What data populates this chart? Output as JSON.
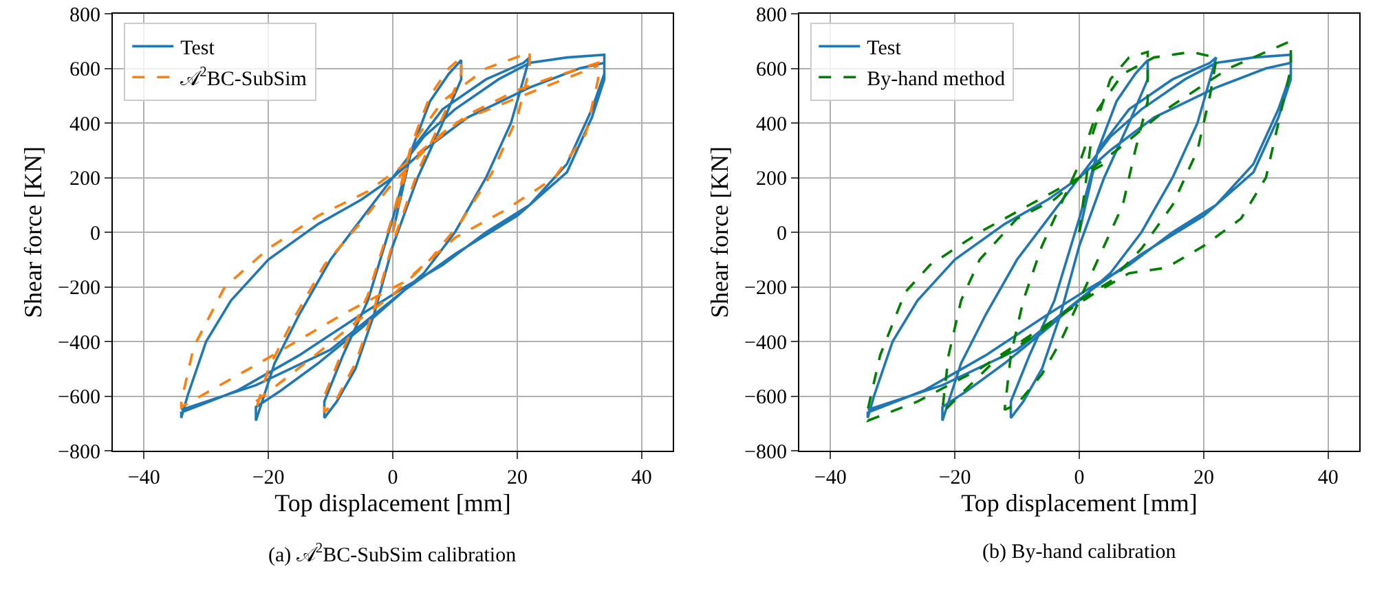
{
  "chart_data": [
    {
      "type": "line",
      "title": "(a) 𝒜$^{2}$BC-SubSim calibration",
      "xlabel": "Top displacement [mm]",
      "ylabel": "Shear force [KN]",
      "xlim": [
        -45,
        45
      ],
      "xticks": [
        -40,
        -20,
        0,
        20,
        40
      ],
      "ylim": [
        -800,
        800
      ],
      "yticks": [
        -800,
        -600,
        -400,
        -200,
        0,
        200,
        400,
        600,
        800
      ],
      "grid": true,
      "legend": "top left",
      "series": [
        {
          "name": "Test",
          "color": "#1f77b4",
          "line_style": "solid",
          "x": [
            0,
            3,
            6,
            9,
            11,
            11,
            8,
            4,
            0,
            -3,
            -6,
            -9,
            -11,
            -11,
            -8,
            -4,
            0,
            3,
            8,
            15,
            21,
            22,
            21,
            19,
            15,
            10,
            5,
            0,
            -5,
            -12,
            -18,
            -22,
            -22,
            -21,
            -19,
            -15,
            -10,
            -5,
            0,
            5,
            10,
            17,
            22,
            28,
            34,
            34,
            32,
            28,
            22,
            15,
            8,
            2,
            -5,
            -15,
            -25,
            -34,
            -34,
            -33,
            -30,
            -26,
            -20,
            -12,
            -5,
            0,
            5,
            12,
            22,
            30,
            34,
            34,
            32,
            28,
            20,
            10,
            2,
            -10,
            -22,
            -34
          ],
          "values": [
            0,
            300,
            480,
            580,
            630,
            560,
            400,
            200,
            -50,
            -300,
            -500,
            -620,
            -680,
            -620,
            -450,
            -250,
            50,
            300,
            450,
            560,
            620,
            640,
            560,
            400,
            200,
            0,
            -150,
            -250,
            -350,
            -480,
            -580,
            -640,
            -690,
            -620,
            -480,
            -300,
            -100,
            50,
            200,
            350,
            450,
            560,
            620,
            640,
            650,
            580,
            450,
            250,
            100,
            0,
            -120,
            -200,
            -300,
            -450,
            -580,
            -660,
            -680,
            -600,
            -400,
            -250,
            -100,
            30,
            120,
            200,
            300,
            420,
            530,
            600,
            620,
            560,
            420,
            220,
            60,
            -80,
            -210,
            -430,
            -560,
            -650
          ]
        },
        {
          "name": "𝒜$^{2}$BC-SubSim",
          "color": "#ff7f0e",
          "line_style": "dashed",
          "x": [
            0,
            3,
            6,
            9,
            11,
            11,
            8,
            4,
            0,
            -3,
            -6,
            -9,
            -11,
            -11,
            -8,
            -4,
            0,
            3,
            8,
            15,
            21,
            22,
            22,
            20,
            16,
            11,
            6,
            0,
            -6,
            -13,
            -22,
            -22,
            -20,
            -16,
            -11,
            -5,
            0,
            6,
            12,
            20,
            26,
            33,
            33,
            31,
            26,
            18,
            10,
            2,
            -8,
            -20,
            -34,
            -34,
            -32,
            -27,
            -20,
            -12,
            -4,
            2,
            10,
            22,
            33
          ],
          "values": [
            0,
            320,
            500,
            600,
            640,
            580,
            420,
            220,
            -40,
            -280,
            -480,
            -610,
            -660,
            -600,
            -430,
            -230,
            60,
            320,
            480,
            600,
            650,
            660,
            600,
            420,
            220,
            40,
            -100,
            -230,
            -330,
            -460,
            -620,
            -650,
            -500,
            -320,
            -120,
            40,
            180,
            320,
            430,
            520,
            570,
            620,
            560,
            360,
            200,
            80,
            -20,
            -180,
            -300,
            -460,
            -640,
            -620,
            -420,
            -200,
            -60,
            60,
            150,
            250,
            400,
            510,
            610
          ]
        }
      ]
    },
    {
      "type": "line",
      "title": "(b) By-hand calibration",
      "xlabel": "Top displacement [mm]",
      "ylabel": "Shear force [KN]",
      "xlim": [
        -45,
        45
      ],
      "xticks": [
        -40,
        -20,
        0,
        20,
        40
      ],
      "ylim": [
        -800,
        800
      ],
      "yticks": [
        -800,
        -600,
        -400,
        -200,
        0,
        200,
        400,
        600,
        800
      ],
      "grid": true,
      "legend": "top left",
      "series": [
        {
          "name": "Test",
          "color": "#1f77b4",
          "line_style": "solid",
          "x": [
            0,
            3,
            6,
            9,
            11,
            11,
            8,
            4,
            0,
            -3,
            -6,
            -9,
            -11,
            -11,
            -8,
            -4,
            0,
            3,
            8,
            15,
            21,
            22,
            21,
            19,
            15,
            10,
            5,
            0,
            -5,
            -12,
            -18,
            -22,
            -22,
            -21,
            -19,
            -15,
            -10,
            -5,
            0,
            5,
            10,
            17,
            22,
            28,
            34,
            34,
            32,
            28,
            22,
            15,
            8,
            2,
            -5,
            -15,
            -25,
            -34,
            -34,
            -33,
            -30,
            -26,
            -20,
            -12,
            -5,
            0,
            5,
            12,
            22,
            30,
            34,
            34,
            32,
            28,
            20,
            10,
            2,
            -10,
            -22,
            -34
          ],
          "values": [
            0,
            300,
            480,
            580,
            630,
            560,
            400,
            200,
            -50,
            -300,
            -500,
            -620,
            -680,
            -620,
            -450,
            -250,
            50,
            300,
            450,
            560,
            620,
            640,
            560,
            400,
            200,
            0,
            -150,
            -250,
            -350,
            -480,
            -580,
            -640,
            -690,
            -620,
            -480,
            -300,
            -100,
            50,
            200,
            350,
            450,
            560,
            620,
            640,
            650,
            580,
            450,
            250,
            100,
            0,
            -120,
            -200,
            -300,
            -450,
            -580,
            -660,
            -680,
            -600,
            -400,
            -250,
            -100,
            30,
            120,
            200,
            300,
            420,
            530,
            600,
            620,
            560,
            420,
            220,
            60,
            -80,
            -210,
            -430,
            -560,
            -650
          ]
        },
        {
          "name": "By-hand method",
          "color": "#008000",
          "line_style": "dashed",
          "x": [
            0,
            2,
            5,
            8,
            11,
            11,
            9,
            7,
            3,
            0,
            -3,
            -6,
            -10,
            -12,
            -11,
            -9,
            -6,
            -3,
            0,
            3,
            7,
            12,
            18,
            22,
            22,
            21,
            19,
            15,
            10,
            5,
            0,
            -6,
            -14,
            -22,
            -22,
            -21,
            -19,
            -16,
            -10,
            -4,
            0,
            6,
            14,
            24,
            34,
            34,
            32,
            30,
            26,
            20,
            14,
            8,
            2,
            -6,
            -16,
            -26,
            -34,
            -34,
            -32,
            -28,
            -24,
            -16,
            -8,
            0,
            4
          ],
          "values": [
            0,
            350,
            560,
            640,
            660,
            480,
            300,
            100,
            -100,
            -250,
            -400,
            -520,
            -630,
            -650,
            -450,
            -250,
            -50,
            100,
            250,
            450,
            580,
            640,
            660,
            640,
            630,
            500,
            300,
            100,
            -60,
            -180,
            -250,
            -360,
            -480,
            -660,
            -650,
            -450,
            -250,
            -100,
            50,
            120,
            200,
            300,
            450,
            600,
            700,
            600,
            400,
            200,
            50,
            -50,
            -130,
            -150,
            -230,
            -350,
            -500,
            -620,
            -690,
            -650,
            -450,
            -220,
            -120,
            0,
            100,
            200,
            250
          ]
        }
      ]
    }
  ]
}
